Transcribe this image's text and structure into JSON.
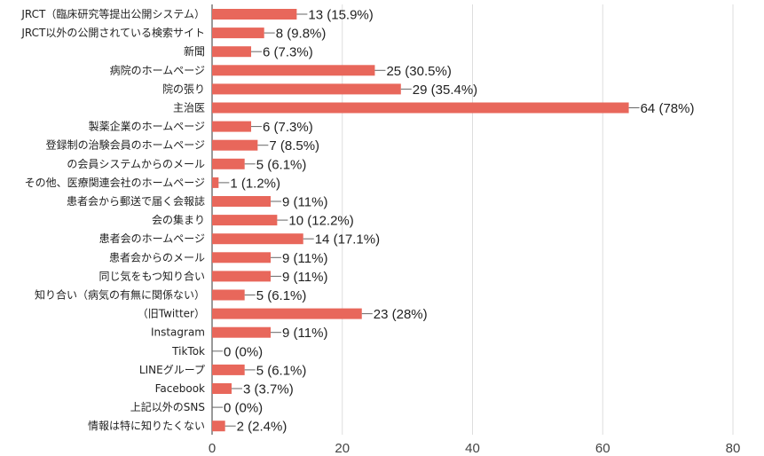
{
  "chart_data": {
    "type": "bar",
    "orientation": "horizontal",
    "title": "",
    "xlabel": "",
    "ylabel": "",
    "xlim": [
      0,
      80
    ],
    "x_ticks": [
      "0",
      "20",
      "40",
      "60",
      "80"
    ],
    "grid": true,
    "legend": "none",
    "bar_color": "#e8675b",
    "categories": [
      "JRCT（臨床研究等提出公開システム）",
      "JRCT以外の公開されている検索サイト",
      "新聞",
      "病院のホームページ",
      "院の張り",
      "主治医",
      "製薬企業のホームページ",
      "登録制の治験会員のホームページ",
      "の会員システムからのメール",
      "その他、医療関連会社のホームページ",
      "患者会から郵送で届く会報誌",
      "会の集まり",
      "患者会のホームページ",
      "患者会からのメール",
      "同じ気をもつ知り合い",
      "知り合い（病気の有無に関係ない）",
      "（旧Twitter）",
      "Instagram",
      "TikTok",
      "LINEグループ",
      "Facebook",
      "上記以外のSNS",
      "情報は特に知りたくない"
    ],
    "values": [
      13,
      8,
      6,
      25,
      29,
      64,
      6,
      7,
      5,
      1,
      9,
      10,
      14,
      9,
      9,
      5,
      23,
      9,
      0,
      5,
      3,
      0,
      2
    ],
    "value_labels": [
      "13 (15.9%)",
      "8 (9.8%)",
      "6 (7.3%)",
      "25 (30.5%)",
      "29 (35.4%)",
      "64 (78%)",
      "6 (7.3%)",
      "7 (8.5%)",
      "5 (6.1%)",
      "1 (1.2%)",
      "9 (11%)",
      "10 (12.2%)",
      "14 (17.1%)",
      "9 (11%)",
      "9 (11%)",
      "5 (6.1%)",
      "23 (28%)",
      "9 (11%)",
      "0 (0%)",
      "5 (6.1%)",
      "3 (3.7%)",
      "0 (0%)",
      "2 (2.4%)"
    ]
  }
}
